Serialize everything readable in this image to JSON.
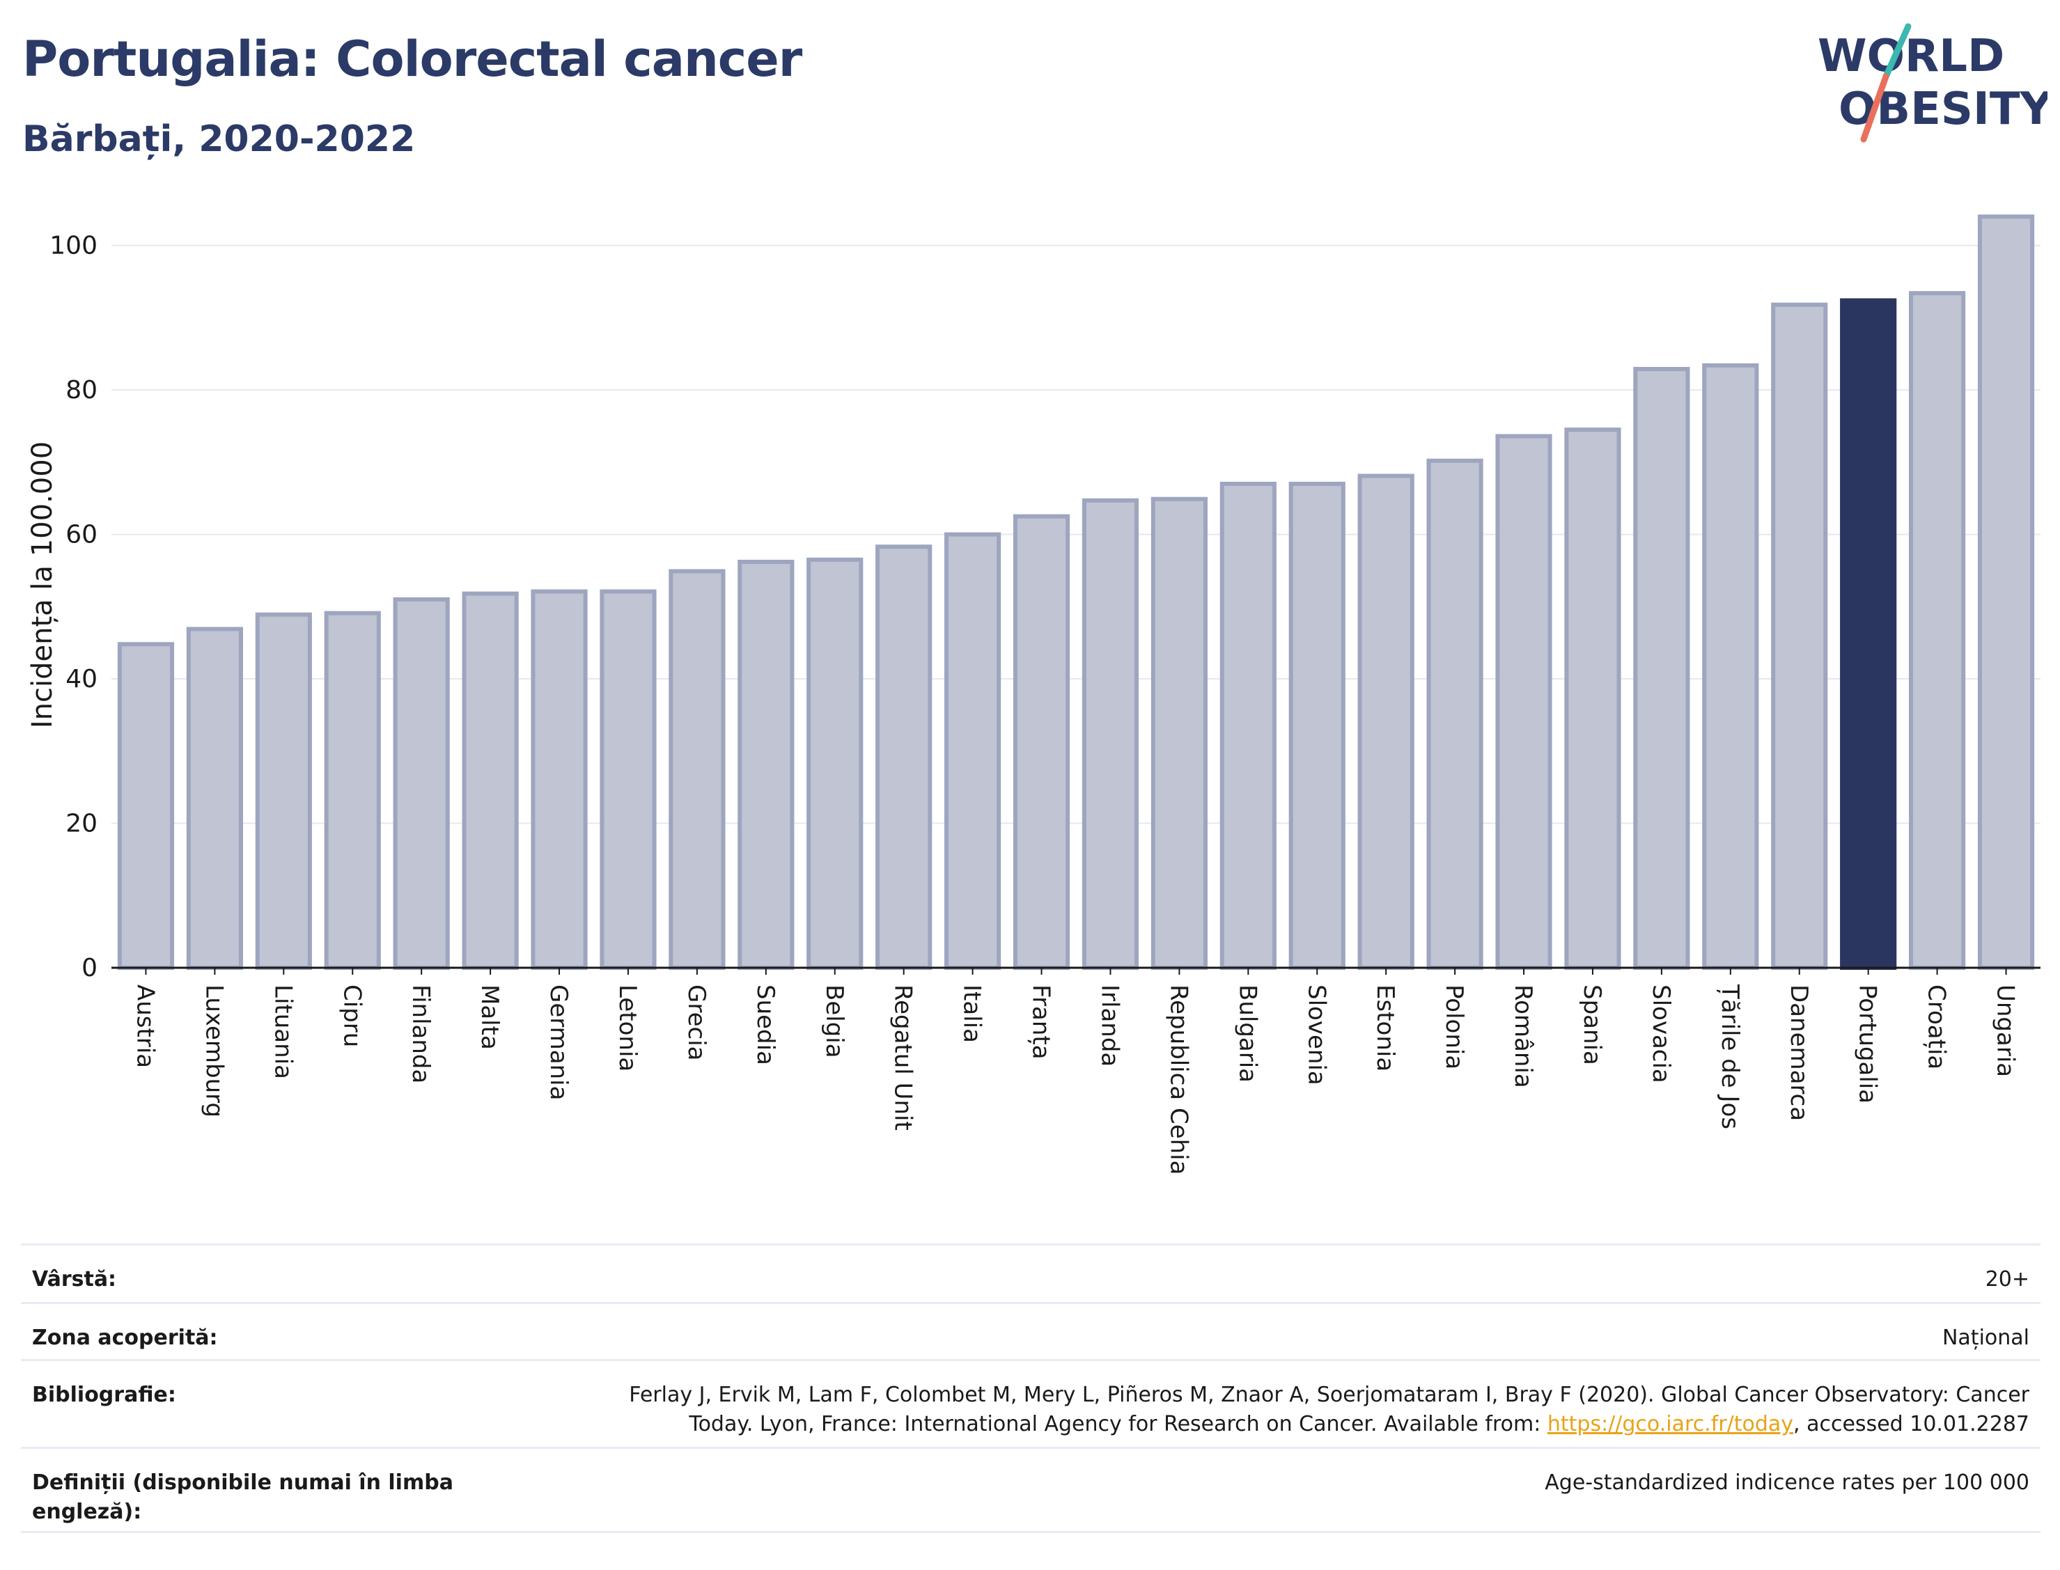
{
  "header": {
    "title": "Portugalia: Colorectal cancer",
    "subtitle": "Bărbați, 2020-2022"
  },
  "logo": {
    "line1": "WORLD",
    "line2": "OBESITY",
    "icon": "world-obesity-logo"
  },
  "colors": {
    "bar": "#c0c4d3",
    "bar_stroke": "#9ea5bf",
    "highlight": "#2b3660",
    "axis": "#1a1a1a",
    "grid": "#e6e8ef",
    "title": "#2b3a67",
    "logo_slash_top": "#3bb8b0",
    "logo_slash_bottom": "#e8705c"
  },
  "chart_data": {
    "type": "bar",
    "ylabel": "Incidența la 100.000",
    "xlabel": "",
    "ylim": [
      0,
      107
    ],
    "yticks": [
      0,
      20,
      40,
      60,
      80,
      100
    ],
    "grid": true,
    "highlight": "Portugalia",
    "categories": [
      "Austria",
      "Luxemburg",
      "Lituania",
      "Cipru",
      "Finlanda",
      "Malta",
      "Germania",
      "Letonia",
      "Grecia",
      "Suedia",
      "Belgia",
      "Regatul Unit",
      "Italia",
      "Franța",
      "Irlanda",
      "Republica Cehia",
      "Bulgaria",
      "Slovenia",
      "Estonia",
      "Polonia",
      "România",
      "Spania",
      "Slovacia",
      "Țările de Jos",
      "Danemarca",
      "Portugalia",
      "Croația",
      "Ungaria"
    ],
    "values": [
      44.8,
      46.9,
      48.9,
      49.1,
      51.0,
      51.8,
      52.1,
      52.1,
      54.9,
      56.2,
      56.5,
      58.3,
      60.0,
      62.5,
      64.7,
      64.9,
      67.0,
      67.0,
      68.1,
      70.2,
      73.6,
      74.5,
      82.9,
      83.4,
      91.8,
      92.4,
      93.4,
      104.0
    ]
  },
  "meta": [
    {
      "key": "Vârstă:",
      "value": "20+"
    },
    {
      "key": "Zona acoperită:",
      "value": "Național"
    },
    {
      "key": "Bibliografie:",
      "value_line1": "Ferlay J, Ervik M, Lam F, Colombet M, Mery L, Piñeros M, Znaor A, Soerjomataram I, Bray F (2020). Global Cancer Observatory: Cancer",
      "value_line2_pre": "Today. Lyon, France: International Agency for Research on Cancer. Available from: ",
      "link": "https://gco.iarc.fr/today",
      "value_line2_post": ", accessed 10.01.2287"
    },
    {
      "key": "Definiții (disponibile numai în limba engleză):",
      "value": "Age-standardized indicence rates per 100 000"
    }
  ]
}
